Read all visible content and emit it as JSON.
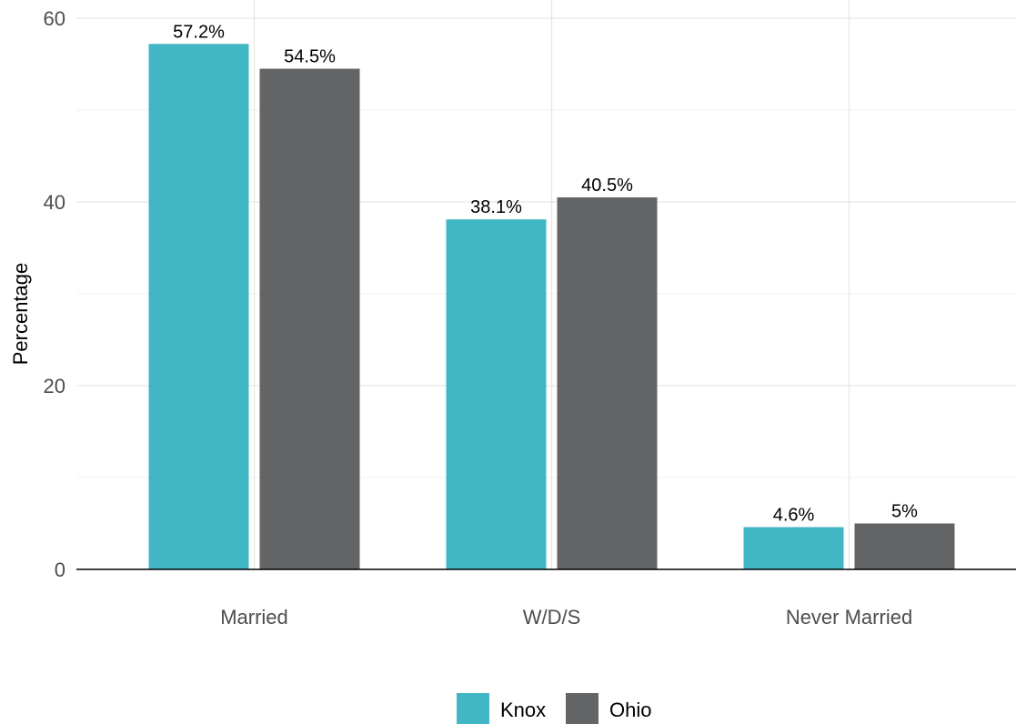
{
  "chart_data": {
    "type": "bar",
    "categories": [
      "Married",
      "W/D/S",
      "Never Married"
    ],
    "series": [
      {
        "name": "Knox",
        "values": [
          57.2,
          38.1,
          4.6
        ],
        "labels": [
          "57.2%",
          "38.1%",
          "4.6%"
        ],
        "color": "#41b6c4"
      },
      {
        "name": "Ohio",
        "values": [
          54.5,
          40.5,
          5.0
        ],
        "labels": [
          "54.5%",
          "40.5%",
          "5%"
        ],
        "color": "#636466"
      }
    ],
    "xlabel": "",
    "ylabel": "Percentage",
    "ylim": [
      0,
      60
    ],
    "yticks": [
      0,
      20,
      40,
      60
    ],
    "ytick_labels": [
      "0",
      "20",
      "40",
      "60"
    ],
    "grid": true,
    "legend_position": "bottom"
  }
}
